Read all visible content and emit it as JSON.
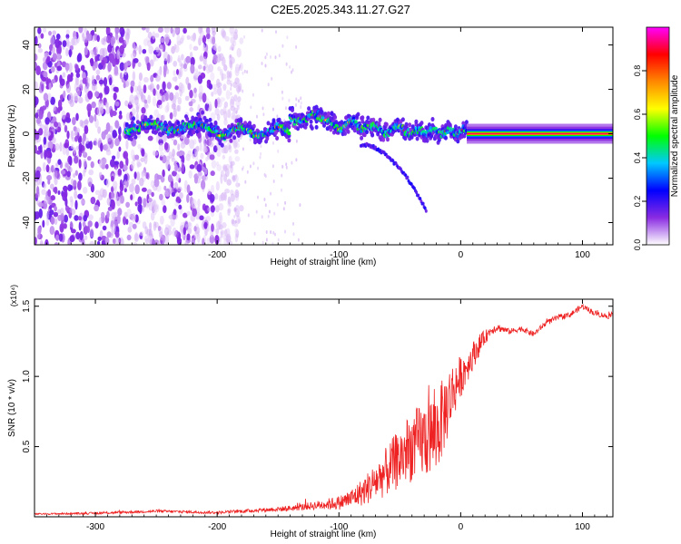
{
  "figure": {
    "title": "C2E5.2025.343.11.27.G27"
  },
  "chart_data": [
    {
      "type": "heatmap",
      "name": "spectrogram",
      "title": "C2E5.2025.343.11.27.G27",
      "xlabel": "Height of straight line (km)",
      "ylabel": "Frequency (Hz)",
      "xlim": [
        -350,
        125
      ],
      "ylim": [
        -50,
        48
      ],
      "x_ticks": [
        -300,
        -200,
        -100,
        0,
        100
      ],
      "y_ticks": [
        -40,
        -20,
        0,
        20,
        40
      ],
      "colorbar": {
        "label": "Normalized spectral amplitude",
        "range": [
          0,
          1
        ],
        "ticks": [
          "0.0",
          "0.2",
          "0.4",
          "0.6",
          "0.8"
        ],
        "colors": [
          "#ffffff",
          "#8a2be2",
          "#0000ff",
          "#00c8ff",
          "#00ff00",
          "#ffff00",
          "#ff8800",
          "#ff0000",
          "#ff00ff"
        ]
      },
      "features": {
        "noise_region_km": [
          -350,
          -190
        ],
        "signal_band_km": [
          -275,
          5
        ],
        "tone_region_km": [
          5,
          125
        ],
        "tone_frequency_hz": 0,
        "branch_frequency_hz": [
          -5,
          -35
        ]
      }
    },
    {
      "type": "line",
      "name": "snr",
      "xlabel": "Height of straight line (km)",
      "ylabel": "SNR (10 * v/v)",
      "y_multiplier": "(x10⁴)",
      "xlim": [
        -350,
        125
      ],
      "ylim": [
        0,
        1.55
      ],
      "x_ticks": [
        -300,
        -200,
        -100,
        0,
        100
      ],
      "y_ticks": [
        0.5,
        1.0,
        1.5
      ],
      "y_tick_labels": [
        "0.5",
        "1.0",
        "1.5"
      ],
      "series": [
        {
          "name": "SNR",
          "color": "#ee2222",
          "x": [
            -350,
            -300,
            -250,
            -200,
            -180,
            -160,
            -140,
            -120,
            -100,
            -90,
            -80,
            -70,
            -60,
            -50,
            -40,
            -30,
            -20,
            -15,
            -10,
            -5,
            0,
            5,
            10,
            15,
            20,
            25,
            30,
            40,
            50,
            60,
            70,
            80,
            90,
            100,
            110,
            120,
            125
          ],
          "y": [
            0.02,
            0.025,
            0.04,
            0.03,
            0.04,
            0.05,
            0.06,
            0.08,
            0.1,
            0.13,
            0.18,
            0.25,
            0.33,
            0.42,
            0.5,
            0.55,
            0.6,
            0.7,
            0.82,
            0.92,
            1.0,
            1.07,
            1.15,
            1.22,
            1.28,
            1.33,
            1.35,
            1.32,
            1.34,
            1.3,
            1.38,
            1.42,
            1.44,
            1.5,
            1.45,
            1.43,
            1.43
          ],
          "noise_amplitude": [
            0.005,
            0.008,
            0.01,
            0.01,
            0.012,
            0.015,
            0.02,
            0.03,
            0.05,
            0.07,
            0.1,
            0.14,
            0.18,
            0.22,
            0.25,
            0.28,
            0.3,
            0.28,
            0.25,
            0.2,
            0.15,
            0.12,
            0.1,
            0.08,
            0.05,
            0.03,
            0.03,
            0.02,
            0.02,
            0.02,
            0.02,
            0.02,
            0.02,
            0.02,
            0.02,
            0.02,
            0.02
          ]
        }
      ]
    }
  ]
}
